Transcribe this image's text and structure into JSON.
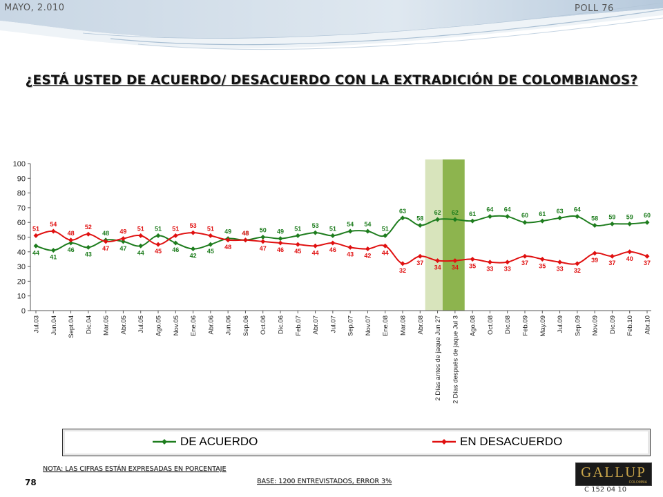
{
  "header": {
    "date": "MAYO, 2.010",
    "poll": "POLL 76"
  },
  "title": "¿ESTÁ USTED DE ACUERDO/ DESACUERDO CON LA EXTRADICIÓN DE COLOMBIANOS?",
  "legend": {
    "series1": "DE ACUERDO",
    "series2": "EN DESACUERDO"
  },
  "note": "NOTA: LAS CIFRAS ESTÁN EXPRESADAS EN PORCENTAJE",
  "base": "BASE: 1200 ENTREVISTADOS, ERROR 3%",
  "page_number": "78",
  "logo": {
    "name": "GALLUP",
    "sub": "COLOMBIA"
  },
  "code": "C 152 04 10",
  "colors": {
    "acuerdo": "#1e7d1e",
    "desacuerdo": "#e01010",
    "band_light": "#d8e4bc",
    "band_dark": "#8db44e"
  },
  "chart_data": {
    "type": "line",
    "categories": [
      "Jul.03",
      "Jun.04",
      "Sept.04",
      "Dic.04",
      "Mar.05",
      "Abr.05",
      "Jul.05",
      "Ago.05",
      "Nov.05",
      "Ene.06",
      "Abr.06",
      "Jun.06",
      "Sep.06",
      "Oct.06",
      "Dic.06",
      "Feb.07",
      "Abr.07",
      "Jul.07",
      "Sep.07",
      "Nov.07",
      "Ene.08",
      "Mar.08",
      "Abr.08",
      "2 Días antes de jaque Jun 27",
      "2 Días después de jaque Jul 3",
      "Ago.08",
      "Oct.08",
      "Dic.08",
      "Feb.09",
      "May.09",
      "Jul.09",
      "Sep.09",
      "Nov.09",
      "Dic.09",
      "Feb.10",
      "Abr.10"
    ],
    "series": [
      {
        "name": "DE ACUERDO",
        "values": [
          44,
          41,
          46,
          43,
          48,
          47,
          44,
          51,
          46,
          42,
          45,
          49,
          48,
          50,
          49,
          51,
          53,
          51,
          54,
          54,
          51,
          63,
          58,
          62,
          62,
          61,
          64,
          64,
          60,
          61,
          63,
          64,
          58,
          59,
          59,
          60
        ]
      },
      {
        "name": "EN DESACUERDO",
        "values": [
          51,
          54,
          48,
          52,
          47,
          49,
          51,
          45,
          51,
          53,
          51,
          48,
          48,
          47,
          46,
          45,
          44,
          46,
          43,
          42,
          44,
          32,
          37,
          34,
          34,
          35,
          33,
          33,
          37,
          35,
          33,
          32,
          39,
          37,
          40,
          37
        ]
      }
    ],
    "highlighted_categories": [
      "2 Días antes de jaque Jun 27",
      "2 Días después de jaque Jul 3"
    ],
    "ylim": [
      0,
      100
    ],
    "yticks": [
      0,
      10,
      20,
      30,
      40,
      50,
      60,
      70,
      80,
      90,
      100
    ],
    "grid": false,
    "legend_position": "bottom"
  }
}
